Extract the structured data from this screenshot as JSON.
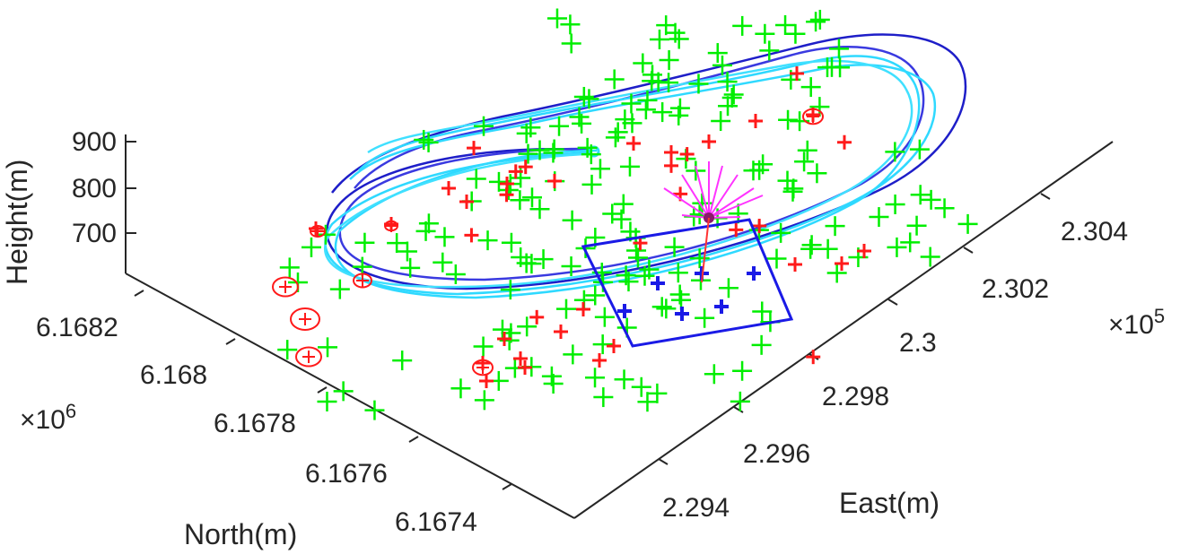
{
  "chart_data": {
    "type": "scatter",
    "projection": "3d",
    "axes": {
      "x": {
        "label": "East(m)",
        "ticks": [
          "2.294",
          "2.296",
          "2.298",
          "2.3",
          "2.302",
          "2.304"
        ],
        "multiplier": "×10",
        "exponent": "5"
      },
      "y": {
        "label": "North(m)",
        "ticks": [
          "6.1674",
          "6.1676",
          "6.1678",
          "6.168",
          "6.1682"
        ],
        "multiplier": "×10",
        "exponent": "6"
      },
      "z": {
        "label": "Height(m)",
        "ticks": [
          "700",
          "800",
          "900"
        ]
      }
    },
    "colors": {
      "axis": "#262626",
      "ground_points": "#00ff00",
      "highlighted_points": "#ff0000",
      "circled_points": "#ff0000",
      "camera_points": "#0000ff",
      "footprint": "#0000ff",
      "trajectory_1": "#0000ff",
      "trajectory_2": "#00e5ff",
      "rays": "#ff00ff"
    },
    "series": [
      {
        "marker": "plus",
        "color": "#00ff00",
        "count": 200
      },
      {
        "marker": "plus",
        "color": "#ff0000",
        "count": 38
      },
      {
        "marker": "circle-plus",
        "color": "#ff0000",
        "count": 8
      },
      {
        "marker": "filled-plus",
        "color": "#0000ff",
        "count": 6
      }
    ],
    "grid": false,
    "legend": "none"
  }
}
